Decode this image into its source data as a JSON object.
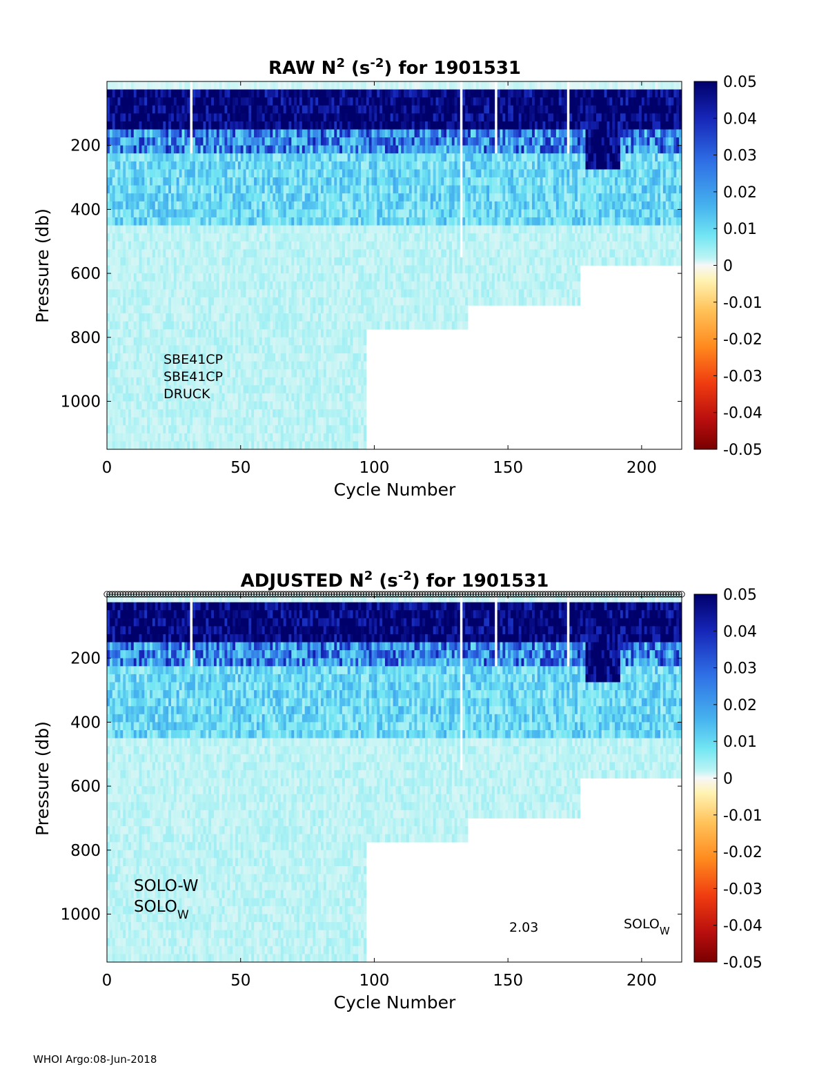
{
  "footer": "WHOI Argo:08-Jun-2018",
  "colorbar": {
    "ticks": [
      "0.05",
      "0.04",
      "0.03",
      "0.02",
      "0.01",
      "0",
      "-0.01",
      "-0.02",
      "-0.03",
      "-0.04",
      "-0.05"
    ],
    "range": [
      -0.05,
      0.05
    ],
    "colormap": [
      "#f7f7f7",
      "#fff3b3",
      "#ffc35a",
      "#ff8a1e",
      "#f03c10",
      "#b80e0e",
      "#7a0000"
    ],
    "colormap_pos": [
      "#f7f7f7",
      "#bdf4f4",
      "#72e6f3",
      "#46b3ee",
      "#2f70e6",
      "#1626b8",
      "#00006b"
    ]
  },
  "chart_data": [
    {
      "type": "heatmap",
      "title_main": "RAW N",
      "title_sup": "2",
      "title_mid": " (s",
      "title_sup2": "-2",
      "title_end": ") for 1901531",
      "xlabel": "Cycle Number",
      "ylabel": "Pressure (db)",
      "xlim": [
        0,
        215
      ],
      "ylim": [
        1150,
        0
      ],
      "xticks": [
        "0",
        "50",
        "100",
        "150",
        "200"
      ],
      "yticks": [
        "200",
        "400",
        "600",
        "800",
        "1000"
      ],
      "annotations": [
        "SBE41CP",
        "SBE41CP",
        "DRUCK"
      ],
      "max_depth_profile": [
        [
          0,
          1150
        ],
        [
          95,
          1150
        ],
        [
          97,
          760
        ],
        [
          135,
          760
        ],
        [
          135,
          700
        ],
        [
          177,
          700
        ],
        [
          177,
          560
        ],
        [
          215,
          560
        ]
      ],
      "value_bands": [
        {
          "p_from": 0,
          "p_to": 150,
          "value": 0.05
        },
        {
          "p_from": 150,
          "p_to": 220,
          "value": 0.03
        },
        {
          "p_from": 220,
          "p_to": 450,
          "value": 0.018
        },
        {
          "p_from": 450,
          "p_to": 1150,
          "value": 0.008
        }
      ]
    },
    {
      "type": "heatmap",
      "title_main": "ADJUSTED N",
      "title_sup": "2",
      "title_mid": " (s",
      "title_sup2": "-2",
      "title_end": ") for 1901531",
      "xlabel": "Cycle Number",
      "ylabel": "Pressure (db)",
      "xlim": [
        0,
        215
      ],
      "ylim": [
        1150,
        0
      ],
      "xticks": [
        "0",
        "50",
        "100",
        "150",
        "200"
      ],
      "yticks": [
        "200",
        "400",
        "600",
        "800",
        "1000"
      ],
      "annotations_left": [
        "SOLO-W",
        "SOLO"
      ],
      "annotation_left_sub": "W",
      "annotation_mid": "2.03",
      "annotation_right": "SOLO",
      "annotation_right_sub": "W",
      "top_markers": "o",
      "max_depth_profile": [
        [
          0,
          1150
        ],
        [
          95,
          1150
        ],
        [
          97,
          760
        ],
        [
          135,
          760
        ],
        [
          135,
          700
        ],
        [
          177,
          700
        ],
        [
          177,
          560
        ],
        [
          215,
          560
        ]
      ],
      "value_bands": [
        {
          "p_from": 0,
          "p_to": 150,
          "value": 0.05
        },
        {
          "p_from": 150,
          "p_to": 220,
          "value": 0.03
        },
        {
          "p_from": 220,
          "p_to": 450,
          "value": 0.018
        },
        {
          "p_from": 450,
          "p_to": 1150,
          "value": 0.008
        }
      ]
    }
  ]
}
